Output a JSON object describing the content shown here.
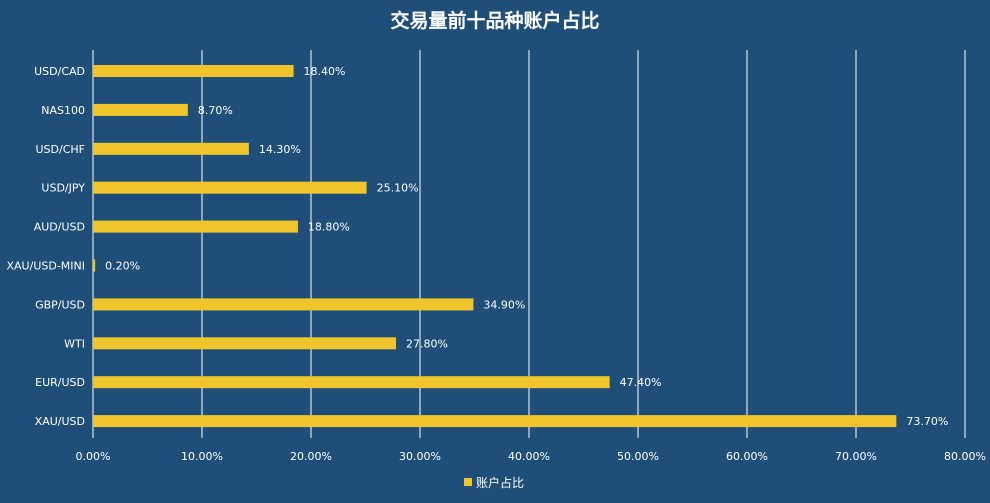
{
  "chart_data": {
    "type": "bar",
    "orientation": "horizontal",
    "title": "交易量前十品种账户占比",
    "categories": [
      "USD/CAD",
      "NAS100",
      "USD/CHF",
      "USD/JPY",
      "AUD/USD",
      "XAU/USD-MINI",
      "GBP/USD",
      "WTI",
      "EUR/USD",
      "XAU/USD"
    ],
    "series": [
      {
        "name": "账户占比",
        "values": [
          18.4,
          8.7,
          14.3,
          25.1,
          18.8,
          0.2,
          34.9,
          27.8,
          47.4,
          73.7
        ],
        "labels": [
          "18.40%",
          "8.70%",
          "14.30%",
          "25.10%",
          "18.80%",
          "0.20%",
          "34.90%",
          "27.80%",
          "47.40%",
          "73.70%"
        ]
      }
    ],
    "xlim": [
      0,
      80
    ],
    "xticks": [
      "0.00%",
      "10.00%",
      "20.00%",
      "30.00%",
      "40.00%",
      "50.00%",
      "60.00%",
      "70.00%",
      "80.00%"
    ],
    "grid": true,
    "legend_position": "bottom",
    "colors": {
      "background": "#1f4e79",
      "bar": "#f0c52c",
      "grid": "#ffffff",
      "text": "#ffffff"
    }
  }
}
